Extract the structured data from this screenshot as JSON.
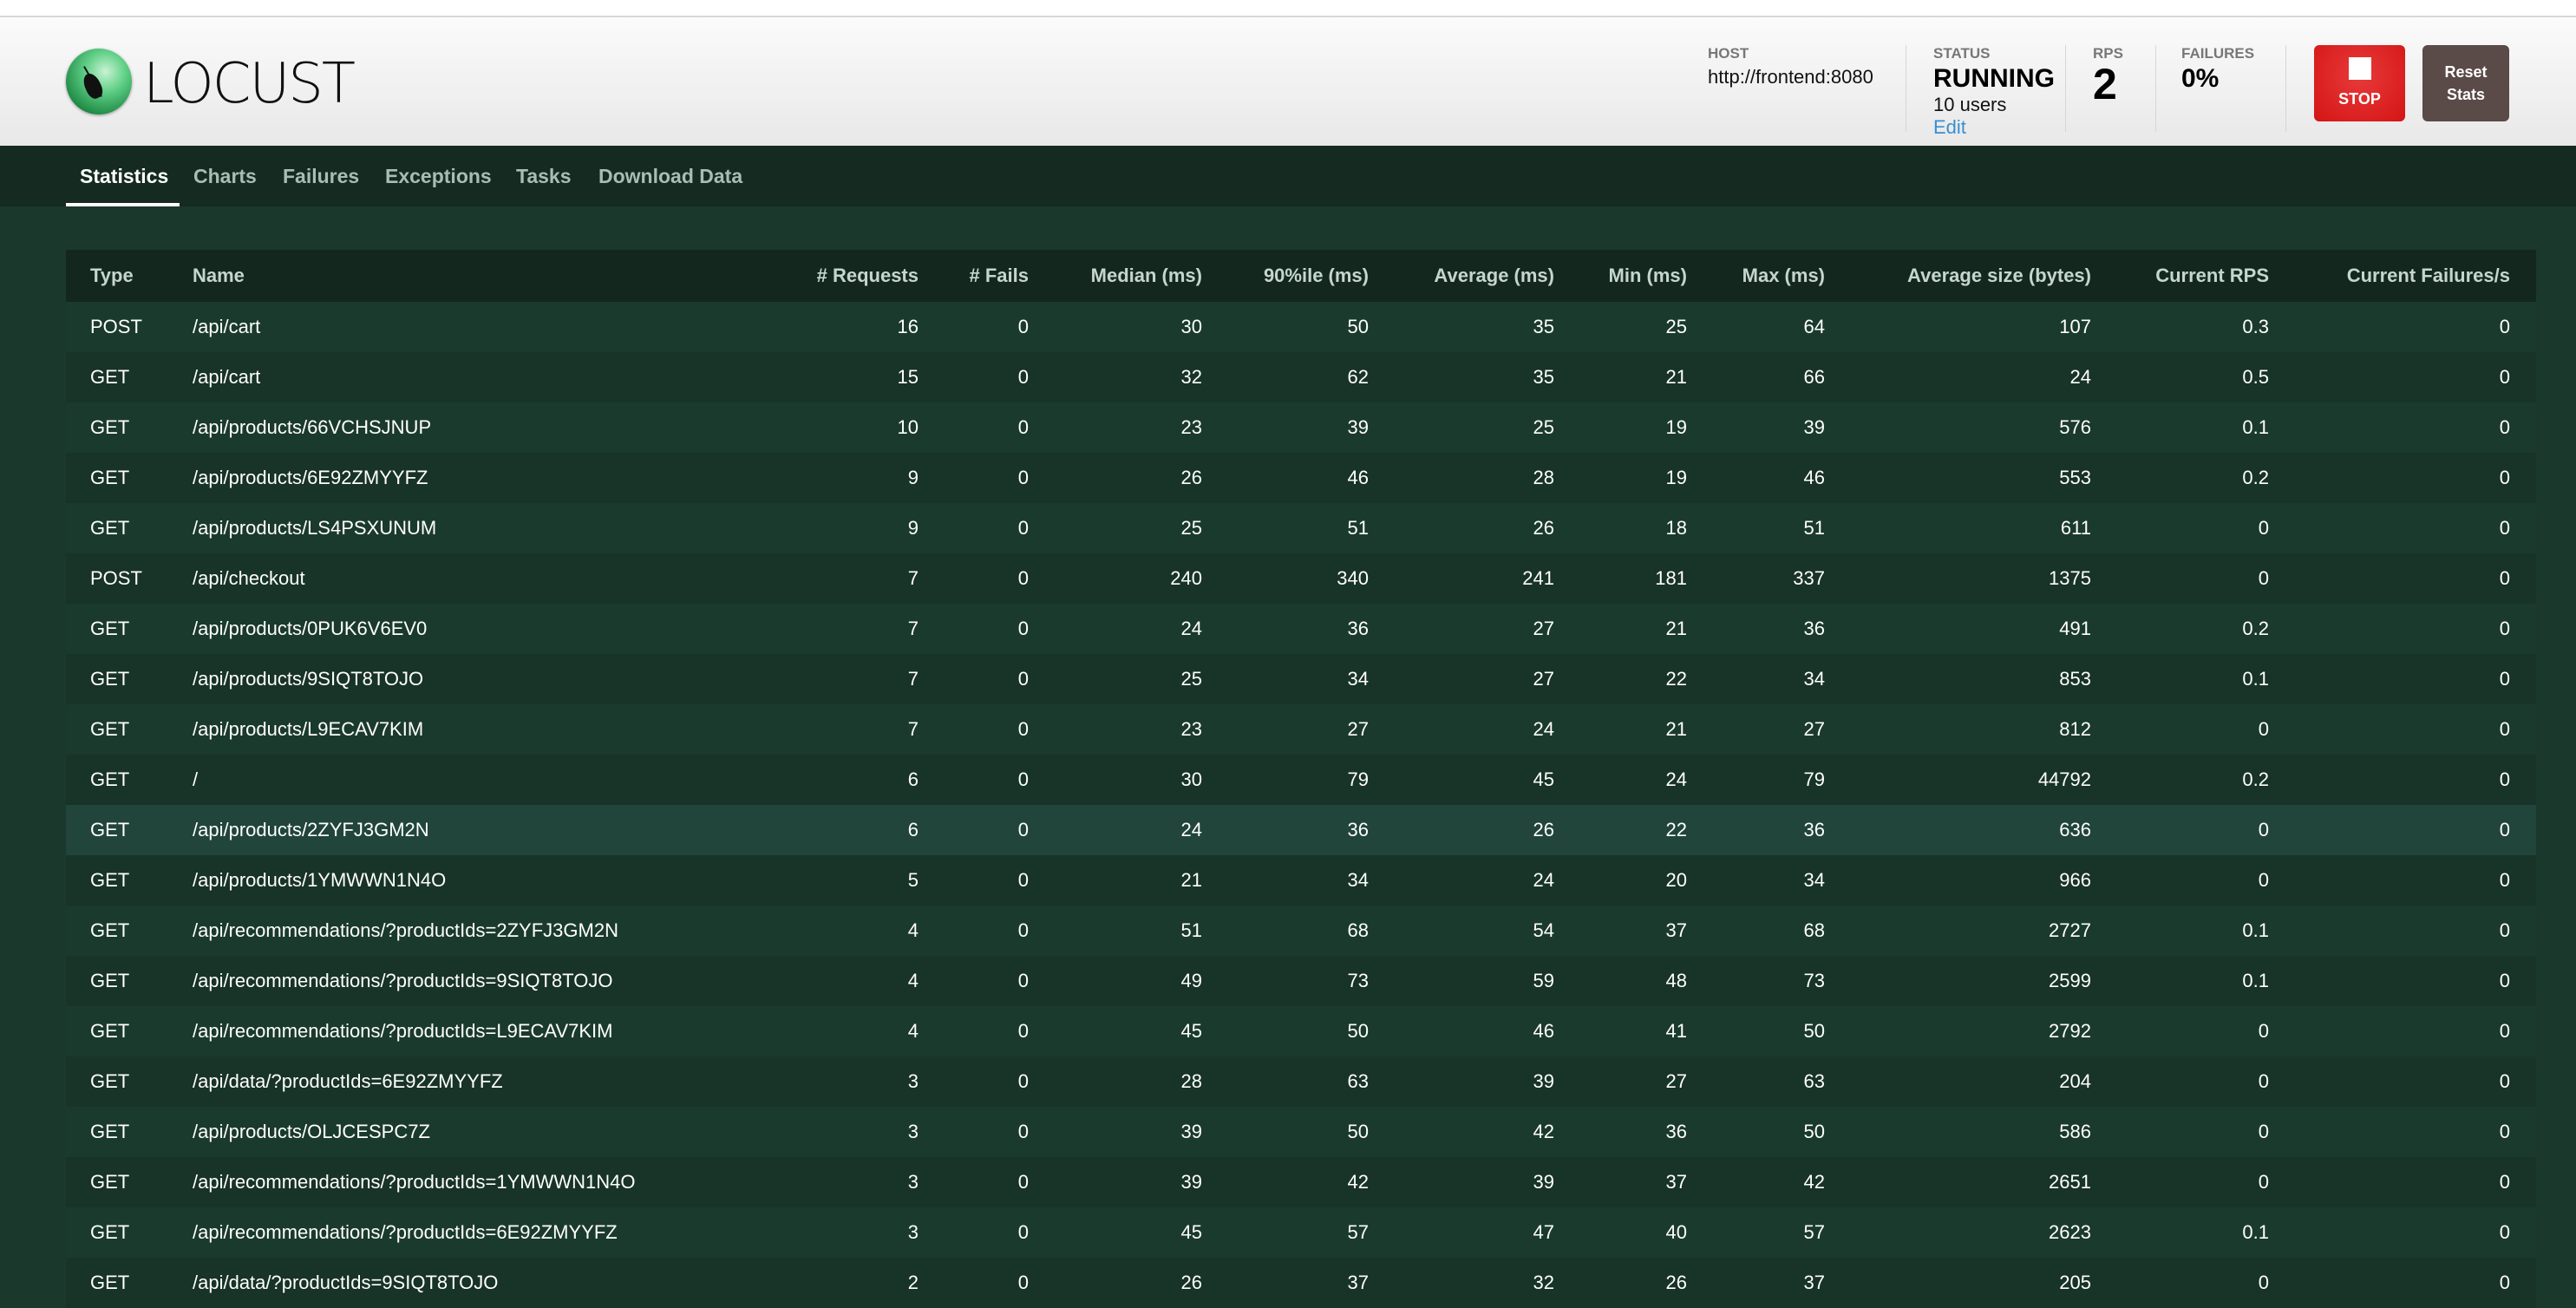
{
  "app": {
    "logo_text": "LOCUST"
  },
  "header": {
    "host": {
      "label": "HOST",
      "value": "http://frontend:8080"
    },
    "status": {
      "label": "STATUS",
      "value": "RUNNING",
      "users": "10 users",
      "edit": "Edit"
    },
    "rps": {
      "label": "RPS",
      "value": "2"
    },
    "failures": {
      "label": "FAILURES",
      "value": "0%"
    },
    "stop_label": "STOP",
    "reset_label_1": "Reset",
    "reset_label_2": "Stats",
    "stop_color": "#d41414",
    "reset_color": "#5a4a48"
  },
  "nav": {
    "tabs": [
      {
        "label": "Statistics",
        "active": true
      },
      {
        "label": "Charts"
      },
      {
        "label": "Failures"
      },
      {
        "label": "Exceptions"
      },
      {
        "label": "Tasks"
      },
      {
        "label": "Download Data"
      }
    ]
  },
  "table": {
    "columns": [
      "Type",
      "Name",
      "# Requests",
      "# Fails",
      "Median (ms)",
      "90%ile (ms)",
      "Average (ms)",
      "Min (ms)",
      "Max (ms)",
      "Average size (bytes)",
      "Current RPS",
      "Current Failures/s"
    ],
    "rows": [
      [
        "POST",
        "/api/cart",
        "16",
        "0",
        "30",
        "50",
        "35",
        "25",
        "64",
        "107",
        "0.3",
        "0"
      ],
      [
        "GET",
        "/api/cart",
        "15",
        "0",
        "32",
        "62",
        "35",
        "21",
        "66",
        "24",
        "0.5",
        "0"
      ],
      [
        "GET",
        "/api/products/66VCHSJNUP",
        "10",
        "0",
        "23",
        "39",
        "25",
        "19",
        "39",
        "576",
        "0.1",
        "0"
      ],
      [
        "GET",
        "/api/products/6E92ZMYYFZ",
        "9",
        "0",
        "26",
        "46",
        "28",
        "19",
        "46",
        "553",
        "0.2",
        "0"
      ],
      [
        "GET",
        "/api/products/LS4PSXUNUM",
        "9",
        "0",
        "25",
        "51",
        "26",
        "18",
        "51",
        "611",
        "0",
        "0"
      ],
      [
        "POST",
        "/api/checkout",
        "7",
        "0",
        "240",
        "340",
        "241",
        "181",
        "337",
        "1375",
        "0",
        "0"
      ],
      [
        "GET",
        "/api/products/0PUK6V6EV0",
        "7",
        "0",
        "24",
        "36",
        "27",
        "21",
        "36",
        "491",
        "0.2",
        "0"
      ],
      [
        "GET",
        "/api/products/9SIQT8TOJO",
        "7",
        "0",
        "25",
        "34",
        "27",
        "22",
        "34",
        "853",
        "0.1",
        "0"
      ],
      [
        "GET",
        "/api/products/L9ECAV7KIM",
        "7",
        "0",
        "23",
        "27",
        "24",
        "21",
        "27",
        "812",
        "0",
        "0"
      ],
      [
        "GET",
        "/",
        "6",
        "0",
        "30",
        "79",
        "45",
        "24",
        "79",
        "44792",
        "0.2",
        "0"
      ],
      [
        "GET",
        "/api/products/2ZYFJ3GM2N",
        "6",
        "0",
        "24",
        "36",
        "26",
        "22",
        "36",
        "636",
        "0",
        "0"
      ],
      [
        "GET",
        "/api/products/1YMWWN1N4O",
        "5",
        "0",
        "21",
        "34",
        "24",
        "20",
        "34",
        "966",
        "0",
        "0"
      ],
      [
        "GET",
        "/api/recommendations/?productIds=2ZYFJ3GM2N",
        "4",
        "0",
        "51",
        "68",
        "54",
        "37",
        "68",
        "2727",
        "0.1",
        "0"
      ],
      [
        "GET",
        "/api/recommendations/?productIds=9SIQT8TOJO",
        "4",
        "0",
        "49",
        "73",
        "59",
        "48",
        "73",
        "2599",
        "0.1",
        "0"
      ],
      [
        "GET",
        "/api/recommendations/?productIds=L9ECAV7KIM",
        "4",
        "0",
        "45",
        "50",
        "46",
        "41",
        "50",
        "2792",
        "0",
        "0"
      ],
      [
        "GET",
        "/api/data/?productIds=6E92ZMYYFZ",
        "3",
        "0",
        "28",
        "63",
        "39",
        "27",
        "63",
        "204",
        "0",
        "0"
      ],
      [
        "GET",
        "/api/products/OLJCESPC7Z",
        "3",
        "0",
        "39",
        "50",
        "42",
        "36",
        "50",
        "586",
        "0",
        "0"
      ],
      [
        "GET",
        "/api/recommendations/?productIds=1YMWWN1N4O",
        "3",
        "0",
        "39",
        "42",
        "39",
        "37",
        "42",
        "2651",
        "0",
        "0"
      ],
      [
        "GET",
        "/api/recommendations/?productIds=6E92ZMYYFZ",
        "3",
        "0",
        "45",
        "57",
        "47",
        "40",
        "57",
        "2623",
        "0.1",
        "0"
      ],
      [
        "GET",
        "/api/data/?productIds=9SIQT8TOJO",
        "2",
        "0",
        "26",
        "37",
        "32",
        "26",
        "37",
        "205",
        "0",
        "0"
      ]
    ],
    "hovered_row": 10
  }
}
